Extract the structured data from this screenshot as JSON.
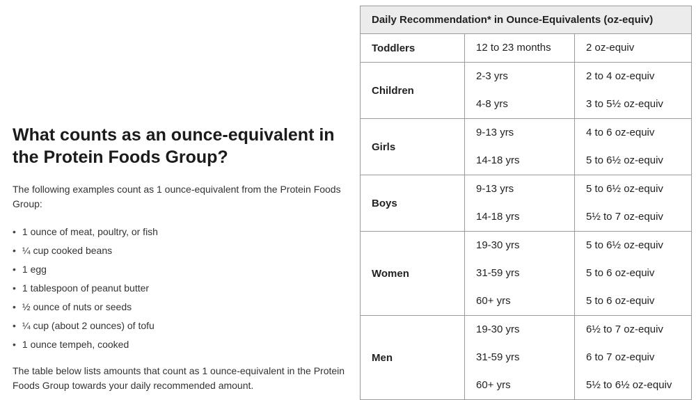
{
  "heading": "What counts as an ounce-equivalent in the Protein Foods Group?",
  "intro": "The following examples count as 1 ounce-equivalent from the Protein Foods Group:",
  "examples": [
    "1 ounce of meat, poultry, or fish",
    "¼ cup cooked beans",
    "1 egg",
    "1 tablespoon of peanut butter",
    "½ ounce of nuts or seeds",
    "¼ cup (about 2 ounces) of tofu",
    "1 ounce tempeh, cooked"
  ],
  "outro": "The table below lists amounts that count as 1 ounce-equivalent in the Protein Foods Group towards your daily recommended amount.",
  "table": {
    "header": "Daily Recommendation* in Ounce-Equivalents (oz-equiv)",
    "groups": [
      {
        "name": "Toddlers",
        "ages": [
          "12 to 23 months"
        ],
        "amounts": [
          "2 oz-equiv"
        ]
      },
      {
        "name": "Children",
        "ages": [
          "2-3 yrs",
          "4-8 yrs"
        ],
        "amounts": [
          "2 to 4 oz-equiv",
          "3 to 5½ oz-equiv"
        ]
      },
      {
        "name": "Girls",
        "ages": [
          "9-13 yrs",
          "14-18 yrs"
        ],
        "amounts": [
          "4 to 6  oz-equiv",
          "5 to 6½ oz-equiv"
        ]
      },
      {
        "name": "Boys",
        "ages": [
          "9-13 yrs",
          "14-18 yrs"
        ],
        "amounts": [
          "5 to 6½ oz-equiv",
          "5½ to 7 oz-equiv"
        ]
      },
      {
        "name": "Women",
        "ages": [
          "19-30 yrs",
          "31-59 yrs",
          "60+ yrs"
        ],
        "amounts": [
          "5 to 6½ oz-equiv",
          "5 to 6 oz-equiv",
          "5 to 6 oz-equiv"
        ]
      },
      {
        "name": "Men",
        "ages": [
          "19-30 yrs",
          "31-59 yrs",
          "60+ yrs"
        ],
        "amounts": [
          "6½ to 7 oz-equiv",
          "6 to 7 oz-equiv",
          "5½ to 6½ oz-equiv"
        ]
      }
    ]
  }
}
